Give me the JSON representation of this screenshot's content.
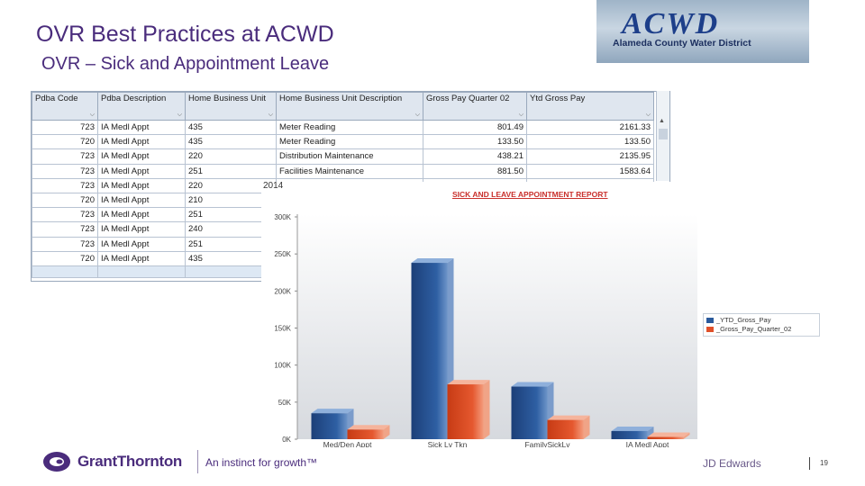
{
  "header": {
    "title": "OVR Best Practices at ACWD",
    "subtitle": "OVR – Sick and Appointment Leave"
  },
  "logo": {
    "mark": "ACWD",
    "org": "Alameda County Water District"
  },
  "grid": {
    "columns": [
      "Pdba Code",
      "Pdba Description",
      "Home Business Unit",
      "Home Business Unit Description",
      "Gross Pay Quarter 02",
      "Ytd Gross Pay"
    ],
    "rows": [
      [
        "723",
        "IA Medl Appt",
        "435",
        "Meter Reading",
        "801.49",
        "2161.33"
      ],
      [
        "720",
        "IA Medl Appt",
        "435",
        "Meter Reading",
        "133.50",
        "133.50"
      ],
      [
        "723",
        "IA Medl Appt",
        "220",
        "Distribution Maintenance",
        "438.21",
        "2135.95"
      ],
      [
        "723",
        "IA Medl Appt",
        "251",
        "Facilities Maintenance",
        "881.50",
        "1583.64"
      ],
      [
        "723",
        "IA Medl Appt",
        "220",
        "",
        "",
        ""
      ],
      [
        "720",
        "IA Medl Appt",
        "210",
        "",
        "",
        ""
      ],
      [
        "723",
        "IA Medl Appt",
        "251",
        "",
        "",
        ""
      ],
      [
        "723",
        "IA Medl Appt",
        "240",
        "",
        "",
        ""
      ],
      [
        "723",
        "IA Medl Appt",
        "251",
        "",
        "",
        ""
      ],
      [
        "720",
        "IA Medl Appt",
        "435",
        "",
        "",
        ""
      ]
    ]
  },
  "chart_year": "2014",
  "chart_data": {
    "type": "bar",
    "title": "SICK AND LEAVE APPOINTMENT REPORT",
    "categories": [
      "Med/Den Appt",
      "Sick Lv Tkn",
      "FamilySickLv",
      "IA Medl Appt"
    ],
    "series": [
      {
        "name": "_YTD_Gross_Pay",
        "values": [
          35000,
          238000,
          71000,
          11000
        ],
        "color": "#2a5a9c"
      },
      {
        "name": "_Gross_Pay_Quarter_02",
        "values": [
          13000,
          74000,
          26000,
          3000
        ],
        "color": "#e0502a"
      }
    ],
    "yticks": [
      "0K",
      "50K",
      "100K",
      "150K",
      "200K",
      "250K",
      "300K"
    ],
    "ylim": [
      0,
      300000
    ],
    "xlabel": "",
    "ylabel": "",
    "legend": "right"
  },
  "footer": {
    "brand": "GrantThornton",
    "tagline": "An instinct for growth™",
    "product": "JD Edwards",
    "page": "19"
  }
}
